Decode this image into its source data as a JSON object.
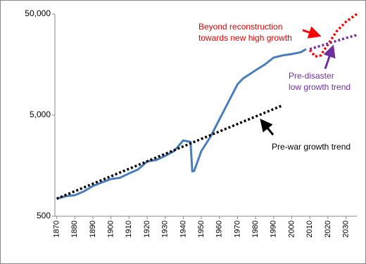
{
  "chart_data": {
    "type": "line",
    "log_scale": true,
    "grid": false,
    "xlim": [
      1869,
      2036
    ],
    "ylim": [
      500,
      50000
    ],
    "xticks": [
      1870,
      1880,
      1890,
      1900,
      1910,
      1920,
      1930,
      1940,
      1950,
      1960,
      1970,
      1980,
      1990,
      2000,
      2010,
      2020,
      2030
    ],
    "yticks": [
      500,
      {
        "value": 5000,
        "label": "5,000"
      },
      {
        "value": 50000,
        "label": "50,000"
      }
    ],
    "series": [
      {
        "color": "#4a7ebb",
        "style": "solid",
        "x": [
          1870,
          1875,
          1880,
          1885,
          1890,
          1895,
          1900,
          1905,
          1910,
          1915,
          1920,
          1925,
          1930,
          1935,
          1940,
          1944,
          1945,
          1946,
          1950,
          1955,
          1960,
          1965,
          1970,
          1973,
          1980,
          1985,
          1990,
          1995,
          2000,
          2005,
          2008
        ],
        "values": [
          746,
          790,
          808,
          880,
          995,
          1080,
          1167,
          1200,
          1327,
          1450,
          1741,
          1800,
          1977,
          2210,
          2810,
          2720,
          1390,
          1400,
          2213,
          3048,
          4540,
          6780,
          10100,
          11500,
          13900,
          15800,
          18550,
          19500,
          20100,
          21000,
          22500
        ]
      },
      {
        "color": "#000000",
        "style": "dotted",
        "x": [
          1870,
          1995
        ],
        "values": [
          746,
          6250
        ]
      },
      {
        "color": "#ff0000",
        "style": "dotted",
        "x": [
          2010,
          2013,
          2016,
          2020,
          2025,
          2030,
          2036
        ],
        "values": [
          22000,
          19000,
          19500,
          25000,
          34000,
          42000,
          50000
        ]
      },
      {
        "color": "#7030a0",
        "style": "dotted",
        "x": [
          2010,
          2020,
          2030,
          2036
        ],
        "values": [
          22500,
          25500,
          29000,
          31000
        ]
      }
    ],
    "annotations": [
      "Beyond reconstruction",
      "towards new high growth",
      "Pre-disaster",
      "low growth trend",
      "Pre-war growth trend"
    ]
  }
}
